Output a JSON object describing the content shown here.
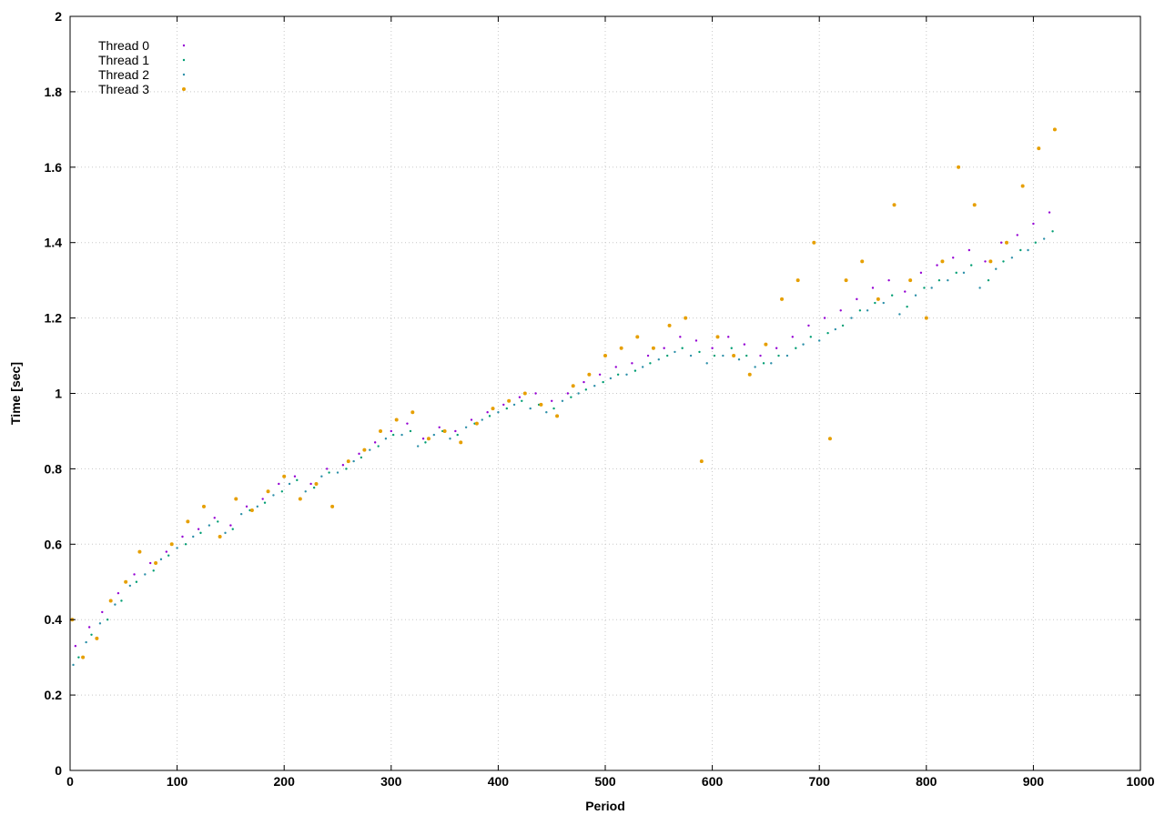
{
  "chart_data": {
    "type": "scatter",
    "title": "",
    "xlabel": "Period",
    "ylabel": "Time [sec]",
    "xlim": [
      0,
      1000
    ],
    "ylim": [
      0,
      2
    ],
    "xticks": [
      0,
      100,
      200,
      300,
      400,
      500,
      600,
      700,
      800,
      900,
      1000
    ],
    "yticks": [
      0,
      0.2,
      0.4,
      0.6,
      0.8,
      1,
      1.2,
      1.4,
      1.6,
      1.8,
      2
    ],
    "grid": true,
    "legend_position": "top-left",
    "series": [
      {
        "name": "Thread 0",
        "color": "#9400d3",
        "marker": "dot",
        "x": [
          5,
          18,
          30,
          45,
          60,
          75,
          90,
          105,
          120,
          135,
          150,
          165,
          180,
          195,
          210,
          225,
          240,
          255,
          270,
          285,
          300,
          315,
          330,
          345,
          360,
          375,
          390,
          405,
          420,
          435,
          450,
          465,
          480,
          495,
          510,
          525,
          540,
          555,
          570,
          585,
          600,
          615,
          630,
          645,
          660,
          675,
          690,
          705,
          720,
          735,
          750,
          765,
          780,
          795,
          810,
          825,
          840,
          855,
          870,
          885,
          900,
          915
        ],
        "y": [
          0.33,
          0.38,
          0.42,
          0.47,
          0.52,
          0.55,
          0.58,
          0.62,
          0.64,
          0.67,
          0.65,
          0.7,
          0.72,
          0.76,
          0.78,
          0.76,
          0.8,
          0.81,
          0.84,
          0.87,
          0.9,
          0.92,
          0.88,
          0.91,
          0.9,
          0.93,
          0.95,
          0.97,
          0.99,
          1.0,
          0.98,
          1.0,
          1.03,
          1.05,
          1.07,
          1.08,
          1.1,
          1.12,
          1.15,
          1.14,
          1.12,
          1.15,
          1.13,
          1.1,
          1.12,
          1.15,
          1.18,
          1.2,
          1.22,
          1.25,
          1.28,
          1.3,
          1.27,
          1.32,
          1.34,
          1.36,
          1.38,
          1.35,
          1.4,
          1.42,
          1.45,
          1.48
        ]
      },
      {
        "name": "Thread 1",
        "color": "#009e73",
        "marker": "dot",
        "x": [
          8,
          20,
          35,
          48,
          62,
          78,
          92,
          108,
          122,
          138,
          152,
          168,
          182,
          198,
          212,
          228,
          242,
          258,
          272,
          288,
          302,
          318,
          332,
          348,
          362,
          378,
          392,
          408,
          422,
          438,
          452,
          468,
          482,
          498,
          512,
          528,
          542,
          558,
          572,
          588,
          602,
          618,
          632,
          648,
          662,
          678,
          692,
          708,
          722,
          738,
          752,
          768,
          782,
          798,
          812,
          828,
          842,
          858,
          872,
          888,
          902,
          918
        ],
        "y": [
          0.3,
          0.36,
          0.4,
          0.45,
          0.5,
          0.53,
          0.57,
          0.6,
          0.63,
          0.66,
          0.64,
          0.69,
          0.71,
          0.74,
          0.77,
          0.75,
          0.79,
          0.8,
          0.83,
          0.86,
          0.89,
          0.9,
          0.87,
          0.9,
          0.89,
          0.92,
          0.94,
          0.96,
          0.98,
          0.97,
          0.96,
          0.99,
          1.01,
          1.03,
          1.05,
          1.06,
          1.08,
          1.1,
          1.12,
          1.11,
          1.1,
          1.12,
          1.1,
          1.08,
          1.1,
          1.12,
          1.15,
          1.16,
          1.18,
          1.22,
          1.24,
          1.26,
          1.23,
          1.28,
          1.3,
          1.32,
          1.34,
          1.3,
          1.35,
          1.38,
          1.4,
          1.43
        ]
      },
      {
        "name": "Thread 2",
        "color": "#2b8fa8",
        "marker": "dot",
        "x": [
          3,
          15,
          28,
          42,
          56,
          70,
          85,
          100,
          115,
          130,
          145,
          160,
          175,
          190,
          205,
          220,
          235,
          250,
          265,
          280,
          295,
          310,
          325,
          340,
          355,
          370,
          385,
          400,
          415,
          430,
          445,
          460,
          475,
          490,
          505,
          520,
          535,
          550,
          565,
          580,
          595,
          610,
          625,
          640,
          655,
          670,
          685,
          700,
          715,
          730,
          745,
          760,
          775,
          790,
          805,
          820,
          835,
          850,
          865,
          880,
          895,
          910
        ],
        "y": [
          0.28,
          0.34,
          0.39,
          0.44,
          0.49,
          0.52,
          0.56,
          0.59,
          0.62,
          0.65,
          0.63,
          0.68,
          0.7,
          0.73,
          0.76,
          0.74,
          0.78,
          0.79,
          0.82,
          0.85,
          0.88,
          0.89,
          0.86,
          0.89,
          0.88,
          0.91,
          0.93,
          0.95,
          0.97,
          0.96,
          0.95,
          0.98,
          1.0,
          1.02,
          1.04,
          1.05,
          1.07,
          1.09,
          1.11,
          1.1,
          1.08,
          1.1,
          1.09,
          1.07,
          1.08,
          1.1,
          1.13,
          1.14,
          1.17,
          1.2,
          1.22,
          1.24,
          1.21,
          1.26,
          1.28,
          1.3,
          1.32,
          1.28,
          1.33,
          1.36,
          1.38,
          1.41
        ]
      },
      {
        "name": "Thread 3",
        "color": "#e69f00",
        "marker": "dot",
        "x": [
          2,
          12,
          25,
          38,
          52,
          65,
          80,
          95,
          110,
          125,
          140,
          155,
          170,
          185,
          200,
          215,
          230,
          245,
          260,
          275,
          290,
          305,
          320,
          335,
          350,
          365,
          380,
          395,
          410,
          425,
          440,
          455,
          470,
          485,
          500,
          515,
          530,
          545,
          560,
          575,
          590,
          605,
          620,
          635,
          650,
          665,
          680,
          695,
          710,
          725,
          740,
          755,
          770,
          785,
          800,
          815,
          830,
          845,
          860,
          875,
          890,
          905,
          920
        ],
        "y": [
          0.4,
          0.3,
          0.35,
          0.45,
          0.5,
          0.58,
          0.55,
          0.6,
          0.66,
          0.7,
          0.62,
          0.72,
          0.69,
          0.74,
          0.78,
          0.72,
          0.76,
          0.7,
          0.82,
          0.85,
          0.9,
          0.93,
          0.95,
          0.88,
          0.9,
          0.87,
          0.92,
          0.96,
          0.98,
          1.0,
          0.97,
          0.94,
          1.02,
          1.05,
          1.1,
          1.12,
          1.15,
          1.12,
          1.18,
          1.2,
          0.82,
          1.15,
          1.1,
          1.05,
          1.13,
          1.25,
          1.3,
          1.4,
          0.88,
          1.3,
          1.35,
          1.25,
          1.5,
          1.3,
          1.2,
          1.35,
          1.6,
          1.5,
          1.35,
          1.4,
          1.55,
          1.65,
          1.7
        ]
      }
    ]
  }
}
